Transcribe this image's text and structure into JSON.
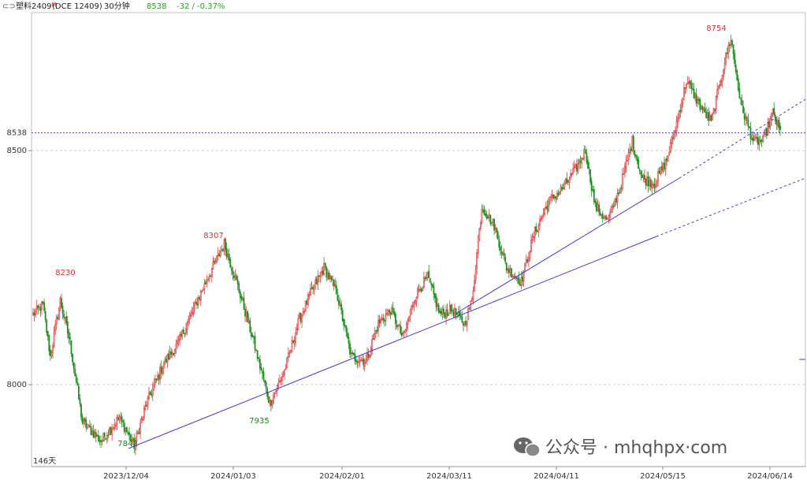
{
  "header": {
    "symbol": "塑料2409",
    "symbol_sup": "M",
    "exchange_code": "(DCE 12409)",
    "timeframe": "30分钟",
    "last_price": "8538",
    "change": "-32 / -0.37%"
  },
  "corner_label": "146天",
  "watermark": "公众号 · mhqhpx·com",
  "colors": {
    "up": "#e23c3c",
    "down": "#1f8f1f",
    "trendline": "#3b3bd8",
    "price_line": "#3b3bd8",
    "grid": "#c8c8c8",
    "header_green": "#2a9a2a"
  },
  "chart_data": {
    "type": "candlestick",
    "y_ticks": [
      8000,
      8500
    ],
    "ylim": [
      7800,
      8800
    ],
    "current_price": 8538,
    "x_tick_labels": [
      "2023/12/04",
      "2024/01/03",
      "2024/02/01",
      "2024/03/11",
      "2024/04/11",
      "2024/05/15",
      "2024/06/14"
    ],
    "annotations": [
      {
        "label": "8230",
        "value": 8230,
        "type": "high"
      },
      {
        "label": "7842",
        "value": 7842,
        "type": "low"
      },
      {
        "label": "8307",
        "value": 8307,
        "type": "high"
      },
      {
        "label": "7935",
        "value": 7935,
        "type": "low"
      },
      {
        "label": "8754",
        "value": 8754,
        "type": "high"
      }
    ],
    "price_path": [
      {
        "i": 0,
        "v": 8150
      },
      {
        "i": 8,
        "v": 8170
      },
      {
        "i": 14,
        "v": 8060
      },
      {
        "i": 22,
        "v": 8180
      },
      {
        "i": 30,
        "v": 8090
      },
      {
        "i": 40,
        "v": 7920
      },
      {
        "i": 55,
        "v": 7880
      },
      {
        "i": 70,
        "v": 7930
      },
      {
        "i": 82,
        "v": 7870
      },
      {
        "i": 92,
        "v": 7960
      },
      {
        "i": 105,
        "v": 8040
      },
      {
        "i": 118,
        "v": 8090
      },
      {
        "i": 130,
        "v": 8160
      },
      {
        "i": 142,
        "v": 8230
      },
      {
        "i": 155,
        "v": 8300
      },
      {
        "i": 165,
        "v": 8220
      },
      {
        "i": 178,
        "v": 8100
      },
      {
        "i": 192,
        "v": 7960
      },
      {
        "i": 204,
        "v": 8030
      },
      {
        "i": 216,
        "v": 8140
      },
      {
        "i": 226,
        "v": 8200
      },
      {
        "i": 236,
        "v": 8250
      },
      {
        "i": 246,
        "v": 8200
      },
      {
        "i": 258,
        "v": 8060
      },
      {
        "i": 270,
        "v": 8050
      },
      {
        "i": 280,
        "v": 8130
      },
      {
        "i": 290,
        "v": 8160
      },
      {
        "i": 300,
        "v": 8100
      },
      {
        "i": 310,
        "v": 8190
      },
      {
        "i": 320,
        "v": 8230
      },
      {
        "i": 330,
        "v": 8150
      },
      {
        "i": 340,
        "v": 8160
      },
      {
        "i": 350,
        "v": 8130
      },
      {
        "i": 356,
        "v": 8180
      },
      {
        "i": 364,
        "v": 8380
      },
      {
        "i": 374,
        "v": 8340
      },
      {
        "i": 384,
        "v": 8250
      },
      {
        "i": 396,
        "v": 8220
      },
      {
        "i": 406,
        "v": 8320
      },
      {
        "i": 418,
        "v": 8390
      },
      {
        "i": 430,
        "v": 8420
      },
      {
        "i": 440,
        "v": 8460
      },
      {
        "i": 448,
        "v": 8500
      },
      {
        "i": 456,
        "v": 8380
      },
      {
        "i": 466,
        "v": 8350
      },
      {
        "i": 476,
        "v": 8420
      },
      {
        "i": 486,
        "v": 8520
      },
      {
        "i": 494,
        "v": 8440
      },
      {
        "i": 504,
        "v": 8430
      },
      {
        "i": 514,
        "v": 8480
      },
      {
        "i": 522,
        "v": 8560
      },
      {
        "i": 530,
        "v": 8650
      },
      {
        "i": 540,
        "v": 8600
      },
      {
        "i": 550,
        "v": 8560
      },
      {
        "i": 560,
        "v": 8680
      },
      {
        "i": 566,
        "v": 8740
      },
      {
        "i": 574,
        "v": 8600
      },
      {
        "i": 584,
        "v": 8520
      },
      {
        "i": 592,
        "v": 8520
      },
      {
        "i": 600,
        "v": 8580
      },
      {
        "i": 606,
        "v": 8540
      }
    ]
  }
}
